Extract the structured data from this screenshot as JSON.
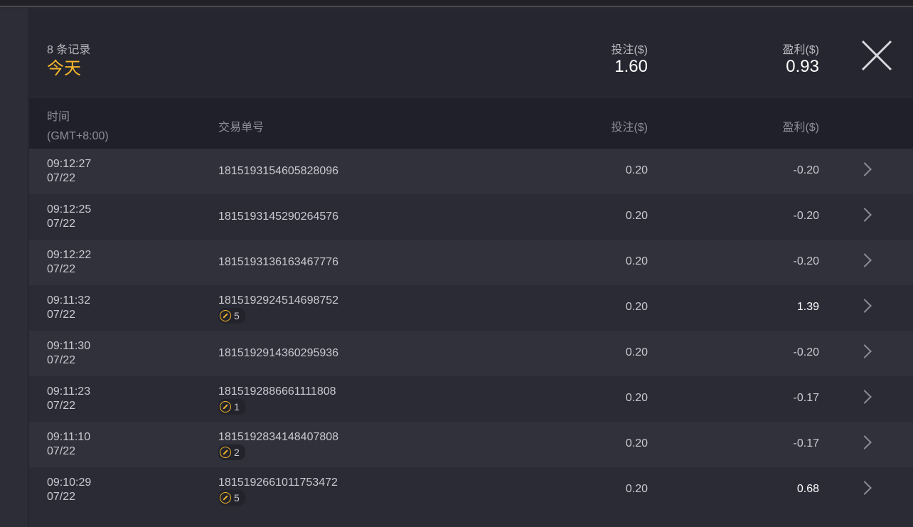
{
  "header": {
    "count": "8 条记录",
    "period": "今天",
    "stake_label": "投注($)",
    "stake_total": "1.60",
    "profit_label": "盈利($)",
    "profit_total": "0.93"
  },
  "columns": {
    "time": "时间",
    "timezone": "(GMT+8:00)",
    "order": "交易单号",
    "stake": "投注($)",
    "profit": "盈利($)"
  },
  "accent": "#f3b72b",
  "rows": [
    {
      "time": "09:12:27",
      "date": "07/22",
      "order": "1815193154605828096",
      "badge": null,
      "stake": "0.20",
      "profit": "-0.20"
    },
    {
      "time": "09:12:25",
      "date": "07/22",
      "order": "1815193145290264576",
      "badge": null,
      "stake": "0.20",
      "profit": "-0.20"
    },
    {
      "time": "09:12:22",
      "date": "07/22",
      "order": "1815193136163467776",
      "badge": null,
      "stake": "0.20",
      "profit": "-0.20"
    },
    {
      "time": "09:11:32",
      "date": "07/22",
      "order": "1815192924514698752",
      "badge": "5",
      "stake": "0.20",
      "profit": "1.39"
    },
    {
      "time": "09:11:30",
      "date": "07/22",
      "order": "1815192914360295936",
      "badge": null,
      "stake": "0.20",
      "profit": "-0.20"
    },
    {
      "time": "09:11:23",
      "date": "07/22",
      "order": "1815192886661111808",
      "badge": "1",
      "stake": "0.20",
      "profit": "-0.17"
    },
    {
      "time": "09:11:10",
      "date": "07/22",
      "order": "1815192834148407808",
      "badge": "2",
      "stake": "0.20",
      "profit": "-0.17"
    },
    {
      "time": "09:10:29",
      "date": "07/22",
      "order": "1815192661011753472",
      "badge": "5",
      "stake": "0.20",
      "profit": "0.68"
    }
  ]
}
